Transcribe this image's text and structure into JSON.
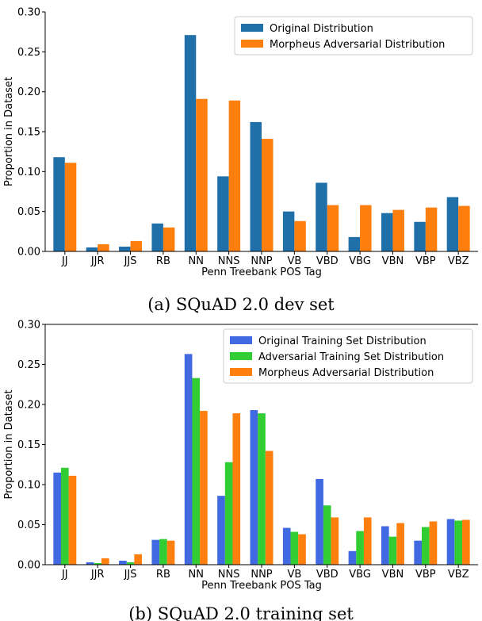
{
  "chart_data": [
    {
      "type": "bar",
      "caption": "(a) SQuAD 2.0 dev set",
      "xlabel": "Penn Treebank POS Tag",
      "ylabel": "Proportion in Dataset",
      "ylim": [
        0,
        0.3
      ],
      "yticks": [
        "0.00",
        "0.05",
        "0.10",
        "0.15",
        "0.20",
        "0.25",
        "0.30"
      ],
      "categories": [
        "JJ",
        "JJR",
        "JJS",
        "RB",
        "NN",
        "NNS",
        "NNP",
        "VB",
        "VBD",
        "VBG",
        "VBN",
        "VBP",
        "VBZ"
      ],
      "legend_position": "top-right",
      "series": [
        {
          "name": "Original Distribution",
          "color": "#1f6fa9",
          "values": [
            0.118,
            0.005,
            0.006,
            0.035,
            0.271,
            0.094,
            0.162,
            0.05,
            0.086,
            0.018,
            0.048,
            0.037,
            0.068
          ]
        },
        {
          "name": "Morpheus Adversarial Distribution",
          "color": "#ff7f0e",
          "values": [
            0.111,
            0.009,
            0.013,
            0.03,
            0.191,
            0.189,
            0.141,
            0.038,
            0.058,
            0.058,
            0.052,
            0.055,
            0.057
          ]
        }
      ]
    },
    {
      "type": "bar",
      "caption": "(b) SQuAD 2.0 training set",
      "xlabel": "Penn Treebank POS Tag",
      "ylabel": "Proportion in Dataset",
      "ylim": [
        0,
        0.3
      ],
      "yticks": [
        "0.00",
        "0.05",
        "0.10",
        "0.15",
        "0.20",
        "0.25",
        "0.30"
      ],
      "categories": [
        "JJ",
        "JJR",
        "JJS",
        "RB",
        "NN",
        "NNS",
        "NNP",
        "VB",
        "VBD",
        "VBG",
        "VBN",
        "VBP",
        "VBZ"
      ],
      "legend_position": "top-right",
      "series": [
        {
          "name": "Original Training Set Distribution",
          "color": "#4169e1",
          "values": [
            0.115,
            0.003,
            0.005,
            0.031,
            0.263,
            0.086,
            0.193,
            0.046,
            0.107,
            0.017,
            0.048,
            0.03,
            0.057
          ]
        },
        {
          "name": "Adversarial Training Set Distribution",
          "color": "#32cd32",
          "values": [
            0.121,
            0.002,
            0.003,
            0.032,
            0.233,
            0.128,
            0.189,
            0.041,
            0.074,
            0.042,
            0.035,
            0.047,
            0.055
          ]
        },
        {
          "name": "Morpheus Adversarial Distribution",
          "color": "#ff7f0e",
          "values": [
            0.111,
            0.008,
            0.013,
            0.03,
            0.192,
            0.189,
            0.142,
            0.038,
            0.059,
            0.059,
            0.052,
            0.054,
            0.056
          ]
        }
      ]
    }
  ]
}
